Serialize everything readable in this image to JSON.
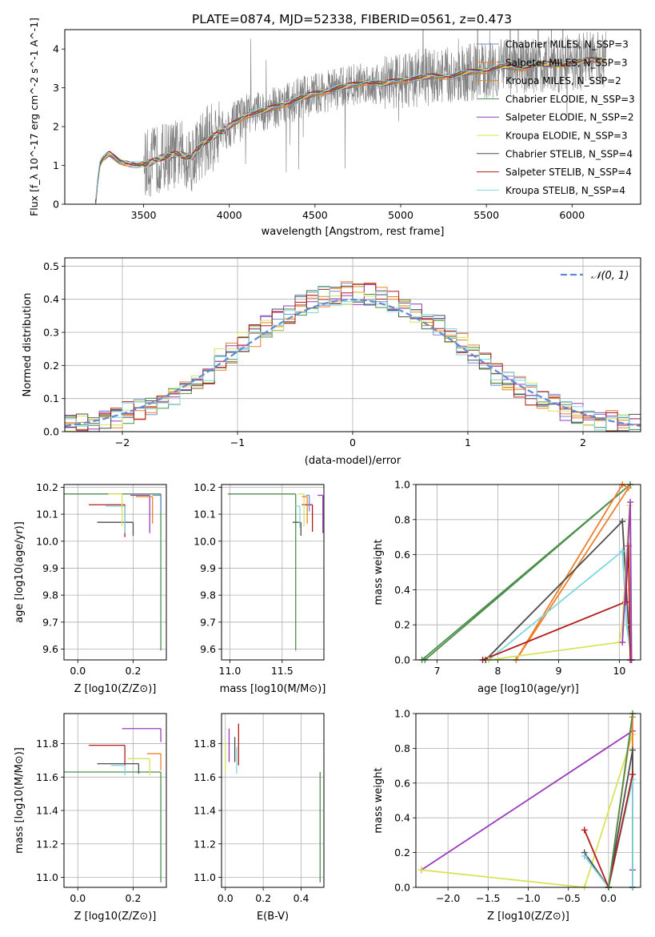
{
  "figure_title": "PLATE=0874, MJD=52338, FIBERID=0561, z=0.473",
  "colors": {
    "chab_miles": "#6f8fd6",
    "salp_miles": "#ec7f2c",
    "krou_miles": "#e0892a",
    "chab_elodie": "#4d8f4d",
    "salp_elodie": "#9b3bbb",
    "krou_elodie": "#d9e35a",
    "chab_stelib": "#4d4d4d",
    "salp_stelib": "#b31c1c",
    "krou_stelib": "#7fd7e0",
    "data_grey": "#808080",
    "gauss": "#5f8bd6",
    "grid": "#b0b0b0"
  },
  "chart_data": [
    {
      "type": "line",
      "panel": "spectrum",
      "xlabel": "wavelength [Angstrom, rest frame]",
      "ylabel": "Flux [f_λ 10^-17 erg cm^-2 s^-1 A^-1]",
      "xlim": [
        3040,
        6400
      ],
      "ylim": [
        0,
        4.5
      ],
      "xticks": [
        3500,
        4000,
        4500,
        5000,
        5500,
        6000
      ],
      "yticks": [
        0,
        1,
        2,
        3,
        4
      ],
      "grid": false,
      "legend_position": "top-right",
      "series": [
        {
          "name": "Chabrier MILES, N_SSP=3",
          "key": "chab_miles"
        },
        {
          "name": "Salpeter MILES, N_SSP=3",
          "key": "salp_miles"
        },
        {
          "name": "Kroupa MILES, N_SSP=2",
          "key": "krou_miles"
        },
        {
          "name": "Chabrier ELODIE, N_SSP=3",
          "key": "chab_elodie"
        },
        {
          "name": "Salpeter ELODIE, N_SSP=2",
          "key": "salp_elodie"
        },
        {
          "name": "Kroupa ELODIE, N_SSP=3",
          "key": "krou_elodie"
        },
        {
          "name": "Chabrier STELIB, N_SSP=4",
          "key": "chab_stelib"
        },
        {
          "name": "Salpeter STELIB, N_SSP=4",
          "key": "salp_stelib"
        },
        {
          "name": "Kroupa STELIB, N_SSP=4",
          "key": "krou_stelib"
        }
      ],
      "continuum": {
        "x": [
          3220,
          3240,
          3260,
          3300,
          3360,
          3420,
          3480,
          3530,
          3600,
          3700,
          3780,
          3850,
          3950,
          4000,
          4100,
          4200,
          4300,
          4400,
          4500,
          4600,
          4700,
          4800,
          4900,
          5000,
          5100,
          5200,
          5300,
          5400,
          5500,
          5600,
          5700,
          5800,
          5900,
          6000,
          6100,
          6200
        ],
        "y": [
          0.05,
          0.95,
          1.15,
          1.3,
          1.1,
          1.05,
          1.0,
          1.05,
          1.2,
          1.3,
          1.2,
          1.6,
          1.85,
          2.0,
          2.3,
          2.4,
          2.55,
          2.7,
          2.85,
          2.95,
          3.05,
          3.15,
          3.1,
          3.2,
          3.25,
          3.3,
          3.3,
          3.4,
          3.45,
          3.55,
          3.5,
          3.6,
          3.6,
          3.65,
          3.7,
          3.75
        ]
      }
    },
    {
      "type": "line",
      "panel": "residuals",
      "xlabel": "(data-model)/error",
      "ylabel": "Normed distribution",
      "xlim": [
        -2.5,
        2.5
      ],
      "ylim": [
        0,
        0.525
      ],
      "xticks": [
        -2,
        -1,
        0,
        1,
        2
      ],
      "xtick_labels": [
        "−2",
        "−1",
        "0",
        "1",
        "2"
      ],
      "yticks": [
        0.0,
        0.1,
        0.2,
        0.3,
        0.4,
        0.5
      ],
      "grid": true,
      "legend_position": "top-right",
      "gauss_label": "𝒩(0, 1)",
      "gaussian": {
        "mean": 0,
        "sigma": 1
      }
    },
    {
      "type": "scatter",
      "panel": "age-vs-Z",
      "xlabel": "Z [log10(Z/Z⊙)]",
      "ylabel": "age [log10(age/yr)]",
      "xlim": [
        -0.05,
        0.32
      ],
      "ylim": [
        9.56,
        10.21
      ],
      "xticks": [
        0.0,
        0.2
      ],
      "yticks": [
        9.6,
        9.7,
        9.8,
        9.9,
        10.0,
        10.1,
        10.2
      ],
      "grid": true,
      "points": [
        {
          "key": "chab_elodie",
          "x": 0.3,
          "y": 10.175,
          "xerr_lo": 0.35,
          "yerr_lo": 0.58
        },
        {
          "key": "chab_stelib",
          "x": 0.2,
          "y": 10.07,
          "xerr_lo": 0.13,
          "yerr_lo": 0.05
        },
        {
          "key": "salp_stelib",
          "x": 0.17,
          "y": 10.135,
          "xerr_lo": 0.13,
          "yerr_lo": 0.12
        },
        {
          "key": "krou_stelib",
          "x": 0.17,
          "y": 10.13,
          "xerr_lo": 0.07,
          "yerr_lo": 0.1
        },
        {
          "key": "krou_elodie",
          "x": 0.16,
          "y": 10.175,
          "xerr_lo": 0.05,
          "yerr_lo": 0.12
        },
        {
          "key": "salp_elodie",
          "x": 0.26,
          "y": 10.17,
          "xerr_lo": 0.07,
          "yerr_lo": 0.14
        },
        {
          "key": "salp_miles",
          "x": 0.27,
          "y": 10.165,
          "xerr_lo": 0.06,
          "yerr_lo": 0.1
        },
        {
          "key": "chab_miles",
          "x": 0.3,
          "y": 10.17,
          "xerr_lo": 0.03,
          "yerr_lo": 0.06
        }
      ]
    },
    {
      "type": "scatter",
      "panel": "age-vs-mass",
      "xlabel": "mass [log10(M/M⊙)]",
      "ylabel": "",
      "xlim": [
        10.92,
        11.9
      ],
      "ylim": [
        9.56,
        10.21
      ],
      "xticks": [
        11.0,
        11.5
      ],
      "yticks": [
        9.6,
        9.7,
        9.8,
        9.9,
        10.0,
        10.1,
        10.2
      ],
      "grid": true,
      "points": [
        {
          "key": "chab_elodie",
          "x": 11.63,
          "y": 10.175,
          "xerr_lo": 0.65,
          "yerr_lo": 0.58
        },
        {
          "key": "chab_stelib",
          "x": 11.68,
          "y": 10.07,
          "xerr_lo": 0.08,
          "yerr_lo": 0.05
        },
        {
          "key": "salp_stelib",
          "x": 11.79,
          "y": 10.135,
          "xerr_lo": 0.1,
          "yerr_lo": 0.1
        },
        {
          "key": "krou_stelib",
          "x": 11.67,
          "y": 10.13,
          "xerr_lo": 0.05,
          "yerr_lo": 0.08
        },
        {
          "key": "krou_elodie",
          "x": 11.71,
          "y": 10.175,
          "xerr_lo": 0.06,
          "yerr_lo": 0.12
        },
        {
          "key": "salp_elodie",
          "x": 11.89,
          "y": 10.17,
          "xerr_lo": 0.05,
          "yerr_lo": 0.14
        },
        {
          "key": "salp_miles",
          "x": 11.74,
          "y": 10.165,
          "xerr_lo": 0.05,
          "yerr_lo": 0.1
        },
        {
          "key": "chab_miles",
          "x": 11.76,
          "y": 10.17,
          "xerr_lo": 0.03,
          "yerr_lo": 0.06
        }
      ]
    },
    {
      "type": "line",
      "panel": "weight-vs-age",
      "xlabel": "age [log10(age/yr)]",
      "ylabel": "mass weight",
      "xlim": [
        6.65,
        10.35
      ],
      "ylim": [
        0,
        1
      ],
      "xticks": [
        7,
        8,
        9,
        10
      ],
      "yticks": [
        0.0,
        0.2,
        0.4,
        0.6,
        0.8,
        1.0
      ],
      "grid": true,
      "lines": [
        {
          "key": "chab_elodie",
          "x": [
            6.8,
            10.18,
            6.75
          ],
          "y": [
            0.0,
            1.0,
            0.0
          ]
        },
        {
          "key": "salp_miles",
          "x": [
            8.3,
            10.05,
            10.15,
            8.3
          ],
          "y": [
            0.0,
            1.0,
            0.98,
            0.0
          ]
        },
        {
          "key": "chab_stelib",
          "x": [
            7.8,
            10.05,
            10.15,
            10.2,
            7.8
          ],
          "y": [
            0.0,
            0.79,
            0.2,
            0.0,
            0.0
          ]
        },
        {
          "key": "krou_stelib",
          "x": [
            7.85,
            10.05,
            10.12,
            10.2,
            7.85
          ],
          "y": [
            0.0,
            0.62,
            0.2,
            0.0,
            0.0
          ]
        },
        {
          "key": "salp_stelib",
          "x": [
            7.75,
            10.1,
            10.15,
            10.18
          ],
          "y": [
            0.0,
            0.33,
            0.65,
            0.0
          ]
        },
        {
          "key": "krou_elodie",
          "x": [
            7.85,
            10.0,
            10.05,
            10.17,
            10.2
          ],
          "y": [
            0.0,
            0.1,
            0.2,
            0.88,
            0.0
          ]
        },
        {
          "key": "salp_elodie",
          "x": [
            10.05,
            10.18,
            10.2
          ],
          "y": [
            0.1,
            0.9,
            0.0
          ]
        }
      ]
    },
    {
      "type": "scatter",
      "panel": "mass-vs-Z",
      "xlabel": "Z [log10(Z/Z⊙)]",
      "ylabel": "mass [log10(M/M⊙)]",
      "xlim": [
        -0.05,
        0.32
      ],
      "ylim": [
        10.94,
        11.98
      ],
      "xticks": [
        0.0,
        0.2
      ],
      "yticks": [
        11.0,
        11.2,
        11.4,
        11.6,
        11.8
      ],
      "grid": true,
      "points": [
        {
          "key": "chab_elodie",
          "x": 0.3,
          "y": 11.63,
          "xerr_lo": 0.35,
          "yerr_lo": 0.66
        },
        {
          "key": "salp_stelib",
          "x": 0.17,
          "y": 11.79,
          "xerr_lo": 0.13,
          "yerr_lo": 0.12
        },
        {
          "key": "chab_stelib",
          "x": 0.22,
          "y": 11.68,
          "xerr_lo": 0.15,
          "yerr_lo": 0.06
        },
        {
          "key": "salp_elodie",
          "x": 0.3,
          "y": 11.89,
          "xerr_lo": 0.14,
          "yerr_lo": 0.08
        },
        {
          "key": "krou_elodie",
          "x": 0.26,
          "y": 11.71,
          "xerr_lo": 0.08,
          "yerr_lo": 0.1
        },
        {
          "key": "krou_stelib",
          "x": 0.17,
          "y": 11.67,
          "xerr_lo": 0.05,
          "yerr_lo": 0.06
        },
        {
          "key": "salp_miles",
          "x": 0.3,
          "y": 11.74,
          "xerr_lo": 0.05,
          "yerr_lo": 0.1
        }
      ]
    },
    {
      "type": "scatter",
      "panel": "mass-vs-EBV",
      "xlabel": "E(B-V)",
      "ylabel": "",
      "xlim": [
        -0.02,
        0.52
      ],
      "ylim": [
        10.94,
        11.98
      ],
      "xticks": [
        0.0,
        0.2,
        0.4
      ],
      "yticks": [
        11.0,
        11.2,
        11.4,
        11.6,
        11.8
      ],
      "grid": true,
      "points": [
        {
          "key": "chab_elodie",
          "x": 0.5,
          "y": 11.63,
          "xerr_lo": 0.0,
          "yerr_lo": 0.66
        },
        {
          "key": "salp_elodie",
          "x": 0.02,
          "y": 11.89,
          "xerr_lo": 0.0,
          "yerr_lo": 0.2
        },
        {
          "key": "salp_stelib",
          "x": 0.07,
          "y": 11.92,
          "xerr_lo": 0.0,
          "yerr_lo": 0.25
        },
        {
          "key": "krou_elodie",
          "x": 0.0,
          "y": 11.82,
          "xerr_lo": 0.0,
          "yerr_lo": 0.18
        },
        {
          "key": "krou_stelib",
          "x": 0.06,
          "y": 11.78,
          "xerr_lo": 0.0,
          "yerr_lo": 0.16
        },
        {
          "key": "chab_stelib",
          "x": 0.05,
          "y": 11.84,
          "xerr_lo": 0.0,
          "yerr_lo": 0.15
        }
      ]
    },
    {
      "type": "line",
      "panel": "weight-vs-Z",
      "xlabel": "Z [log10(Z/Z⊙)]",
      "ylabel": "mass weight",
      "xlim": [
        -2.4,
        0.4
      ],
      "ylim": [
        0,
        1
      ],
      "xticks": [
        -2.0,
        -1.5,
        -1.0,
        -0.5,
        0.0
      ],
      "xtick_labels": [
        "−2.0",
        "−1.5",
        "−1.0",
        "−0.5",
        "0.0"
      ],
      "yticks": [
        0.0,
        0.2,
        0.4,
        0.6,
        0.8,
        1.0
      ],
      "grid": true,
      "lines": [
        {
          "key": "salp_elodie",
          "x": [
            -2.33,
            0.3,
            0.3,
            0.3
          ],
          "y": [
            0.1,
            0.9,
            0.1,
            0.0
          ]
        },
        {
          "key": "krou_elodie",
          "x": [
            -2.33,
            -0.3,
            0.3,
            0.3
          ],
          "y": [
            0.1,
            0.0,
            0.88,
            0.0
          ]
        },
        {
          "key": "salp_miles",
          "x": [
            0.0,
            0.3,
            0.3
          ],
          "y": [
            0.0,
            0.98,
            0.0
          ]
        },
        {
          "key": "chab_stelib",
          "x": [
            -0.3,
            0.0,
            0.3,
            0.3
          ],
          "y": [
            0.2,
            0.0,
            0.79,
            0.0
          ]
        },
        {
          "key": "krou_stelib",
          "x": [
            -0.3,
            0.0,
            0.3,
            0.3
          ],
          "y": [
            0.18,
            0.0,
            0.62,
            0.0
          ]
        },
        {
          "key": "salp_stelib",
          "x": [
            -0.3,
            0.0,
            0.3
          ],
          "y": [
            0.33,
            0.0,
            0.65
          ]
        },
        {
          "key": "chab_elodie",
          "x": [
            0.0,
            0.3
          ],
          "y": [
            0.0,
            1.0
          ]
        }
      ]
    }
  ]
}
